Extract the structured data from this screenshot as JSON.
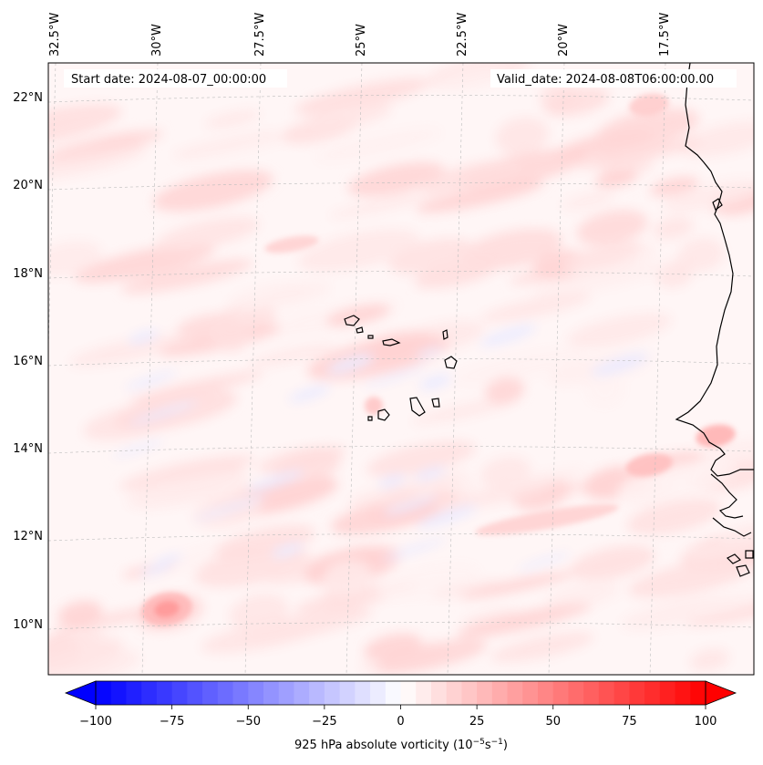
{
  "map": {
    "start_date": "Start date: 2024-08-07_00:00:00",
    "valid_date": "Valid_date: 2024-08-08T06:00:00.00",
    "lon_labels": [
      "32.5°W",
      "30°W",
      "27.5°W",
      "25°W",
      "22.5°W",
      "20°W",
      "17.5°W"
    ],
    "lat_labels": [
      "22°N",
      "20°N",
      "18°N",
      "16°N",
      "14°N",
      "12°N",
      "10°N"
    ],
    "colormap": "bwr",
    "colors": {
      "negative": "#0000ff",
      "zero": "#ffffff",
      "positive": "#ff0000",
      "coastline": "#000000",
      "gridline": "#bdbdbd"
    },
    "features": [
      "coastline",
      "Cape Verde islands",
      "West African coast"
    ]
  },
  "colorbar": {
    "ticks": [
      "−100",
      "−75",
      "−50",
      "−25",
      "0",
      "25",
      "50",
      "75",
      "100"
    ],
    "range": [
      -100,
      100
    ],
    "label_main": "925 hPa absolute vorticity (10",
    "label_exp1": "−5",
    "label_mid": "s",
    "label_exp2": "−1",
    "label_end": ")"
  }
}
